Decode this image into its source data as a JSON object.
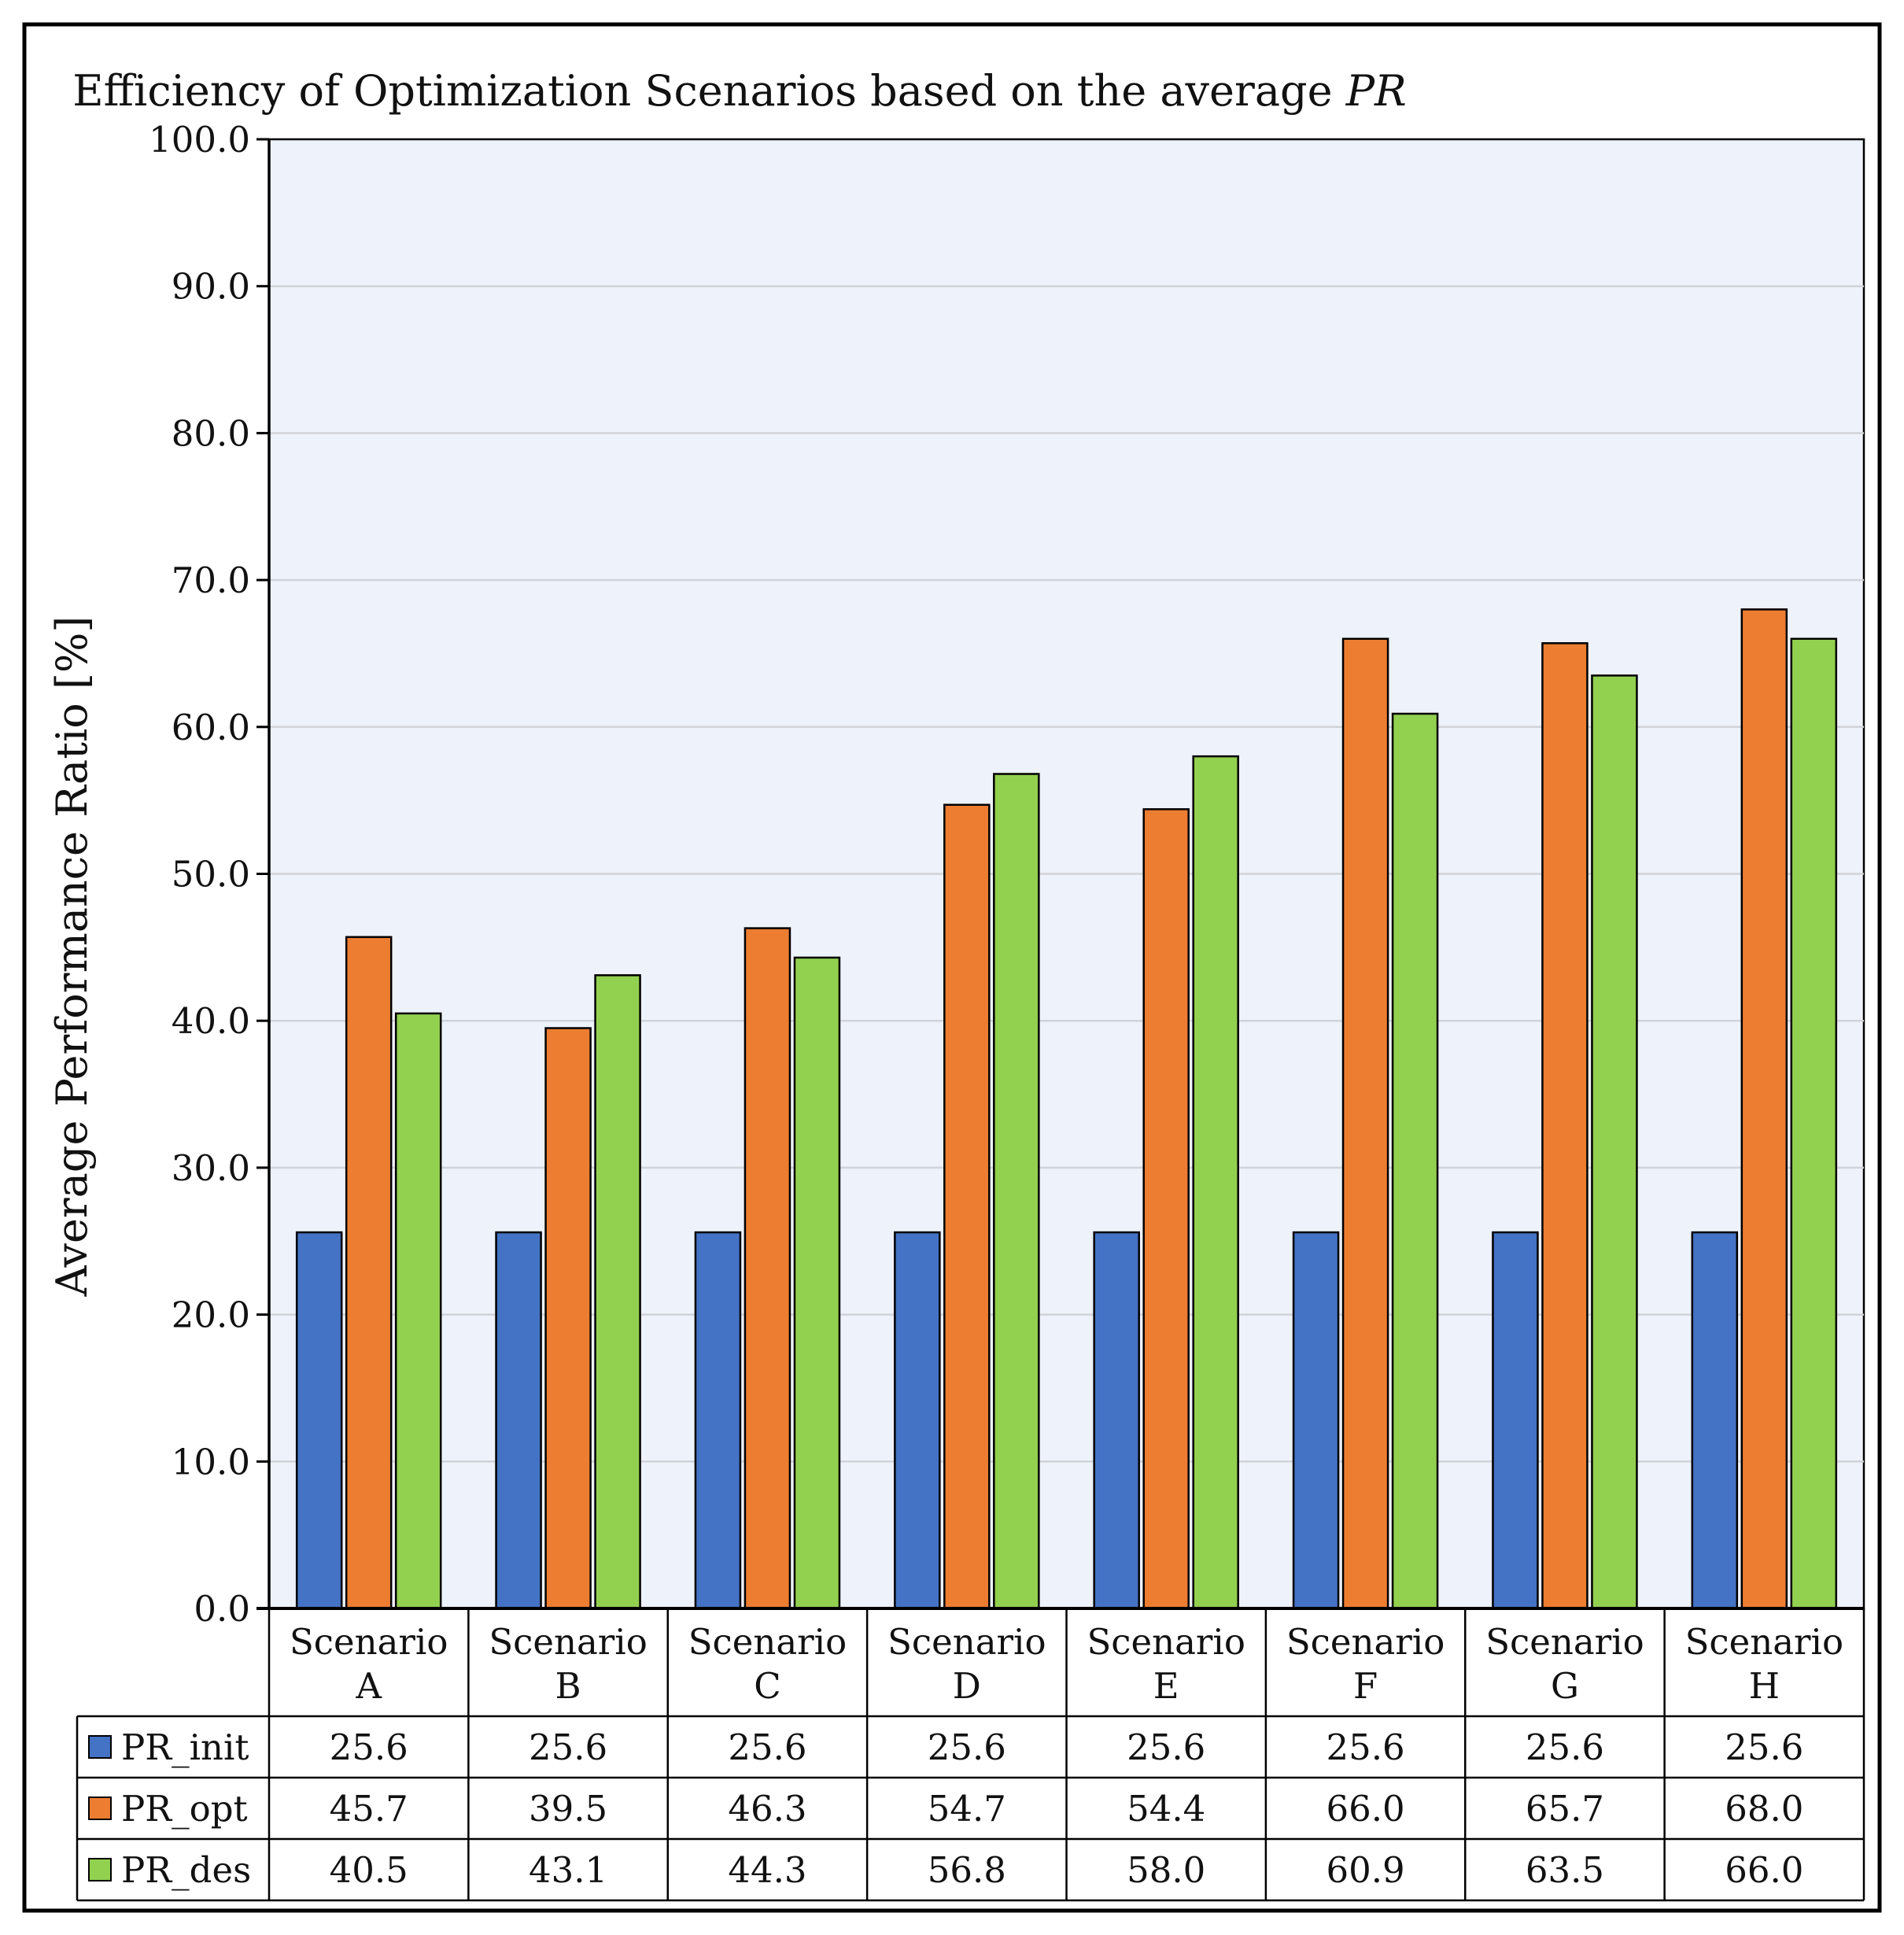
{
  "chart_data": {
    "type": "bar",
    "title_main": "Efficiency of Optimization Scenarios based on the average ",
    "title_italic": "PR",
    "ylabel": "Average Performance Ratio [%]",
    "xlabel": "",
    "ylim": [
      0,
      100
    ],
    "yticks": [
      "0.0",
      "10.0",
      "20.0",
      "30.0",
      "40.0",
      "50.0",
      "60.0",
      "70.0",
      "80.0",
      "90.0",
      "100.0"
    ],
    "gridlines": true,
    "categories": [
      [
        "Scenario",
        "A"
      ],
      [
        "Scenario",
        "B"
      ],
      [
        "Scenario",
        "C"
      ],
      [
        "Scenario",
        "D"
      ],
      [
        "Scenario",
        "E"
      ],
      [
        "Scenario",
        "F"
      ],
      [
        "Scenario",
        "G"
      ],
      [
        "Scenario",
        "H"
      ]
    ],
    "series": [
      {
        "name": "PR_init",
        "color": "#4472C4",
        "values": [
          25.6,
          25.6,
          25.6,
          25.6,
          25.6,
          25.6,
          25.6,
          25.6
        ],
        "table_values": [
          "25.6",
          "25.6",
          "25.6",
          "25.6",
          "25.6",
          "25.6",
          "25.6",
          "25.6"
        ]
      },
      {
        "name": "PR_opt",
        "color": "#ED7D31",
        "values": [
          45.7,
          39.5,
          46.3,
          54.7,
          54.4,
          66.0,
          65.7,
          68.0
        ],
        "table_values": [
          "45.7",
          "39.5",
          "46.3",
          "54.7",
          "54.4",
          "66.0",
          "65.7",
          "68.0"
        ]
      },
      {
        "name": "PR_des",
        "color": "#92D050",
        "values": [
          40.5,
          43.1,
          44.3,
          56.8,
          58.0,
          60.9,
          63.5,
          66.0
        ],
        "table_values": [
          "40.5",
          "43.1",
          "44.3",
          "56.8",
          "58.0",
          "60.9",
          "63.5",
          "66.0"
        ]
      }
    ],
    "legend": "data-table",
    "plot_background": "#EEF2FA"
  }
}
